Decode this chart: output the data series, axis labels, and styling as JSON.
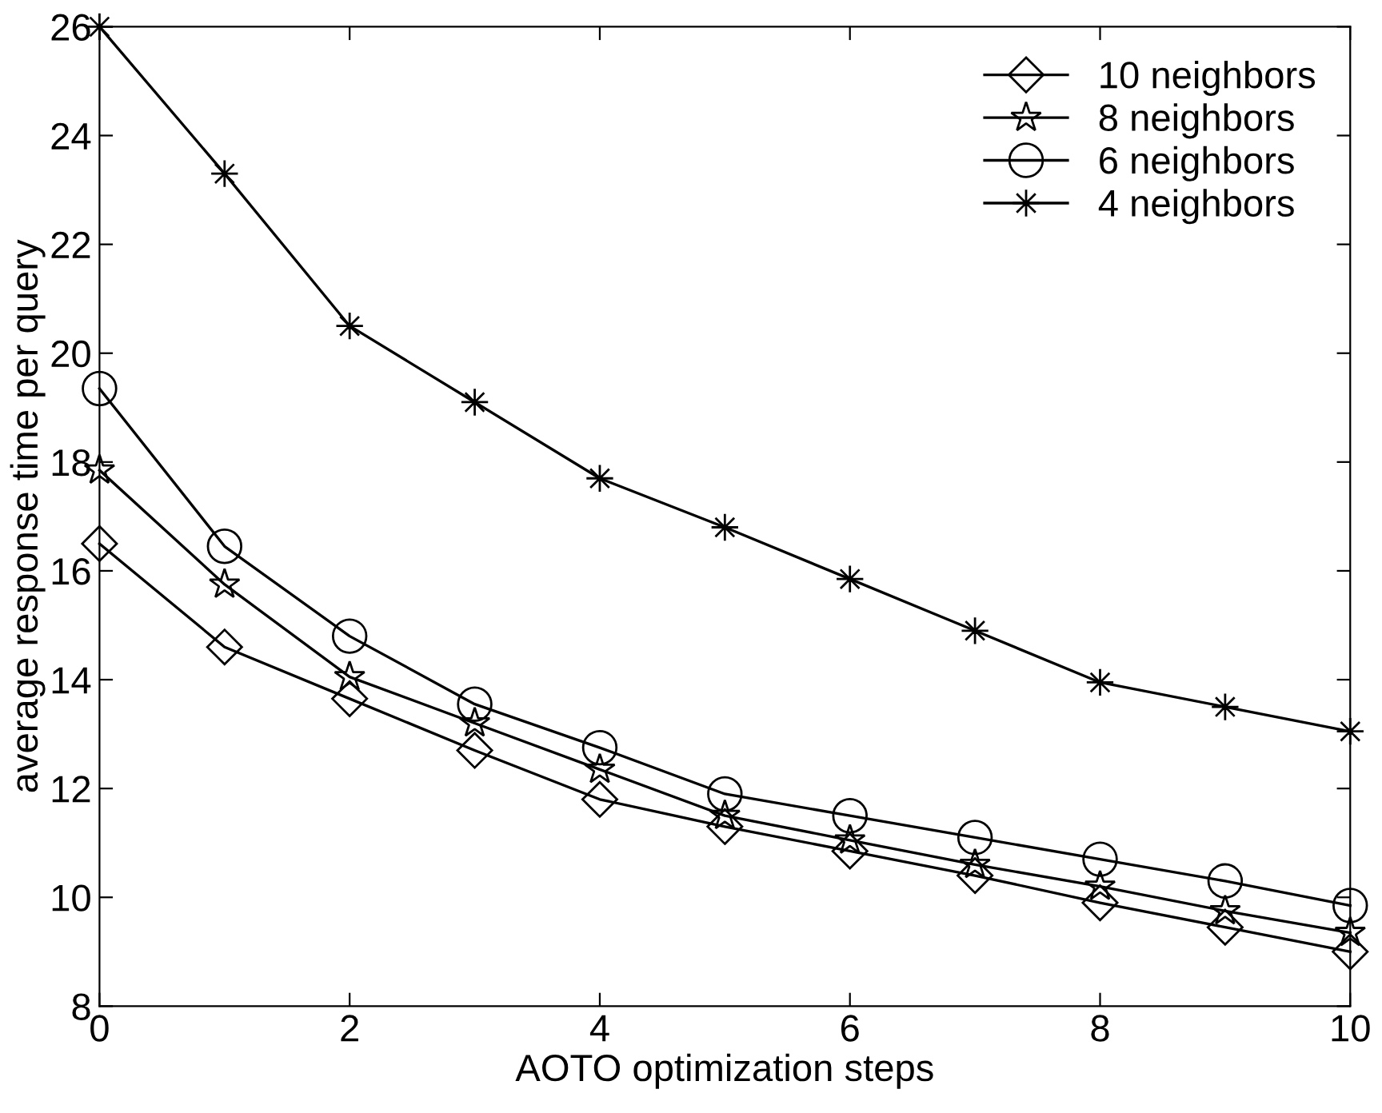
{
  "chart_data": {
    "type": "line",
    "xlabel": "AOTO optimization steps",
    "ylabel": "average response time per query",
    "x": [
      0,
      1,
      2,
      3,
      4,
      5,
      6,
      7,
      8,
      9,
      10
    ],
    "series": [
      {
        "name": "10 neighbors",
        "color": "#000000",
        "marker": "diamond",
        "values": [
          16.5,
          14.6,
          13.65,
          12.7,
          11.8,
          11.3,
          10.85,
          10.4,
          9.9,
          9.45,
          9.0
        ]
      },
      {
        "name": "8 neighbors",
        "color": "#000000",
        "marker": "star",
        "values": [
          17.85,
          15.75,
          14.05,
          13.2,
          12.35,
          11.5,
          11.05,
          10.6,
          10.2,
          9.75,
          9.35
        ]
      },
      {
        "name": "6 neighbors",
        "color": "#000000",
        "marker": "circle",
        "values": [
          19.35,
          16.45,
          14.8,
          13.55,
          12.75,
          11.9,
          11.5,
          11.1,
          10.7,
          10.3,
          9.85
        ]
      },
      {
        "name": "4 neighbors",
        "color": "#000000",
        "marker": "cross",
        "values": [
          26.0,
          23.3,
          20.5,
          19.1,
          17.7,
          16.8,
          15.85,
          14.9,
          13.95,
          13.5,
          13.05
        ]
      }
    ],
    "xlim": [
      0,
      10
    ],
    "xticks": [
      0,
      2,
      4,
      6,
      8,
      10
    ],
    "ylim": [
      8,
      26
    ],
    "yticks": [
      8,
      10,
      12,
      14,
      16,
      18,
      20,
      22,
      24,
      26
    ],
    "grid": false,
    "legend": "top right",
    "line_style": "solid"
  }
}
